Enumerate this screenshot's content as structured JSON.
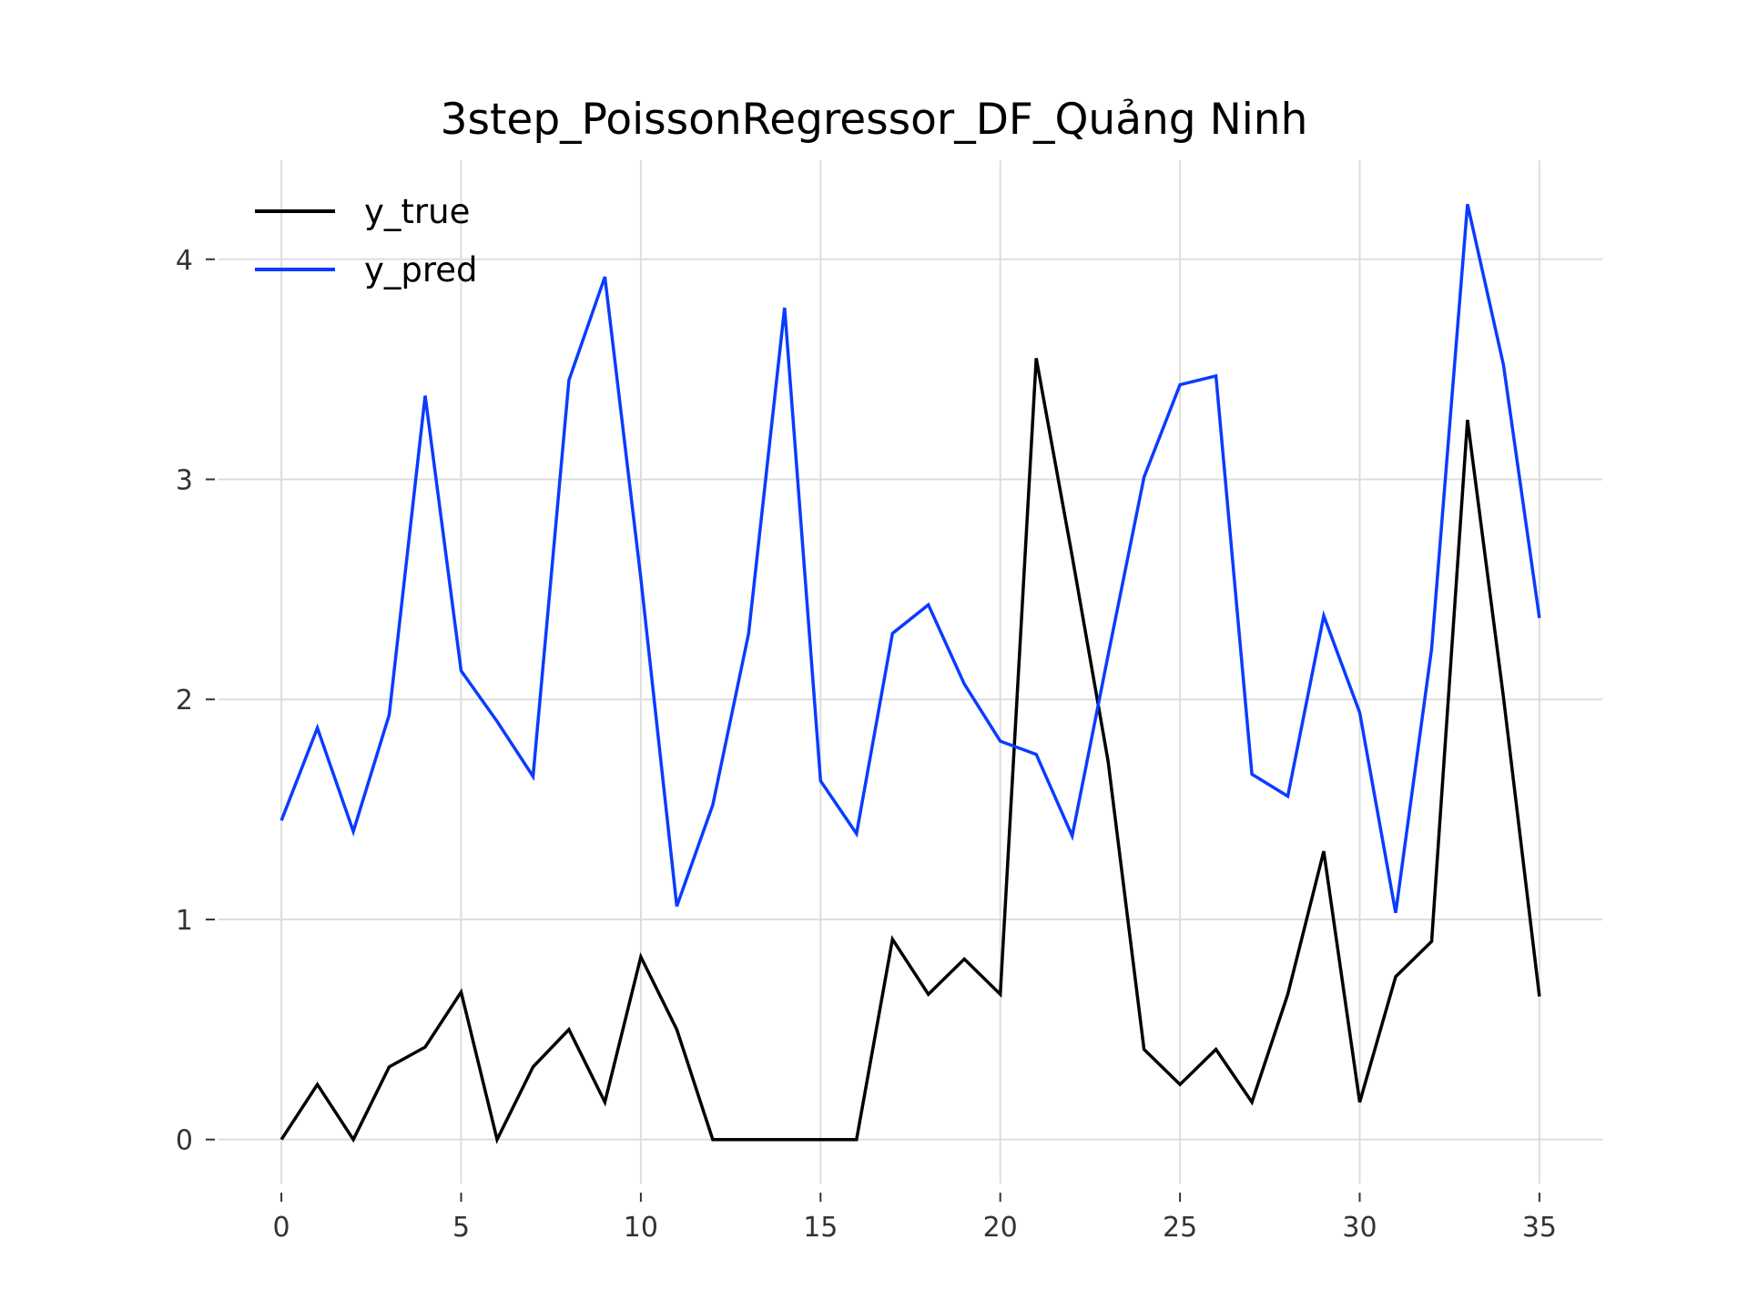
{
  "chart_data": {
    "type": "line",
    "title": "3step_PoissonRegressor_DF_Quảng Ninh",
    "xlabel": "",
    "ylabel": "",
    "xlim": [
      -1.75,
      36.75
    ],
    "ylim": [
      -0.2,
      4.45
    ],
    "xticks": [
      0,
      5,
      10,
      15,
      20,
      25,
      30,
      35
    ],
    "yticks": [
      0,
      1,
      2,
      3,
      4
    ],
    "grid": true,
    "legend_position": "top-left",
    "x": [
      0,
      1,
      2,
      3,
      4,
      5,
      6,
      7,
      8,
      9,
      10,
      11,
      12,
      13,
      14,
      15,
      16,
      17,
      18,
      19,
      20,
      21,
      22,
      23,
      24,
      25,
      26,
      27,
      28,
      29,
      30,
      31,
      32,
      33,
      34,
      35
    ],
    "series": [
      {
        "name": "y_true",
        "color": "#000000",
        "values": [
          0,
          0.25,
          0,
          0.33,
          0.42,
          0.67,
          0,
          0.33,
          0.5,
          0.17,
          0.83,
          0.5,
          0,
          0,
          0,
          0,
          0,
          0.91,
          0.66,
          0.82,
          0.66,
          3.55,
          2.65,
          1.72,
          0.41,
          0.25,
          0.41,
          0.17,
          0.66,
          1.31,
          0.17,
          0.74,
          0.9,
          3.27,
          2.01,
          0.65
        ]
      },
      {
        "name": "y_pred",
        "color": "#0a3cff",
        "values": [
          1.45,
          1.87,
          1.4,
          1.93,
          3.38,
          2.13,
          1.9,
          1.65,
          3.45,
          3.92,
          2.55,
          1.06,
          1.52,
          2.3,
          3.78,
          1.63,
          1.39,
          2.3,
          2.43,
          2.07,
          1.81,
          1.75,
          1.38,
          2.2,
          3.01,
          3.43,
          3.47,
          1.66,
          1.56,
          2.38,
          1.94,
          1.03,
          2.23,
          4.25,
          3.52,
          2.37
        ]
      }
    ]
  }
}
